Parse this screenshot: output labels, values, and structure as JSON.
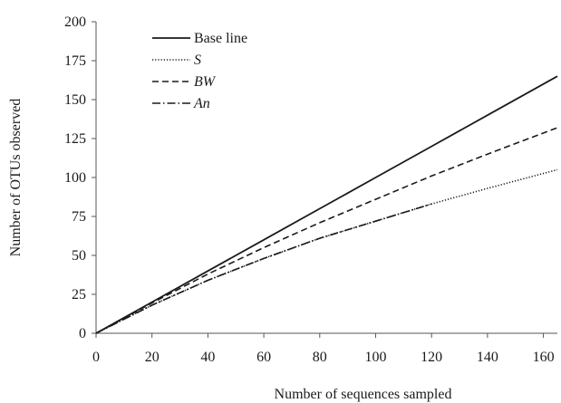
{
  "chart_data": {
    "type": "line",
    "title": "",
    "xlabel": "Number of sequences sampled",
    "ylabel": "Number of OTUs observed",
    "xlim": [
      0,
      165
    ],
    "ylim": [
      0,
      200
    ],
    "x_ticks": [
      0,
      20,
      40,
      60,
      80,
      100,
      120,
      140,
      160
    ],
    "y_ticks": [
      0,
      25,
      50,
      75,
      100,
      125,
      150,
      175,
      200
    ],
    "grid": false,
    "legend_position": "top-left",
    "series": [
      {
        "name": "Base line",
        "style": "solid",
        "italic": false,
        "color": "#1a1a1a",
        "x": [
          0,
          20,
          40,
          60,
          80,
          100,
          120,
          140,
          165
        ],
        "y": [
          0,
          20,
          40,
          60,
          80,
          100,
          120,
          140,
          165
        ]
      },
      {
        "name": "S",
        "style": "dotted",
        "italic": true,
        "color": "#1a1a1a",
        "x": [
          0,
          20,
          40,
          60,
          80,
          100,
          120,
          140,
          165
        ],
        "y": [
          0,
          18,
          34,
          48,
          61,
          72,
          83,
          93,
          105
        ]
      },
      {
        "name": "BW",
        "style": "dashed",
        "italic": true,
        "color": "#1a1a1a",
        "x": [
          0,
          20,
          40,
          60,
          80,
          100,
          120,
          140,
          165
        ],
        "y": [
          0,
          19.5,
          38,
          55,
          71,
          86,
          101,
          115,
          132
        ]
      },
      {
        "name": "An",
        "style": "dashdot",
        "italic": true,
        "color": "#1a1a1a",
        "x": [
          0,
          20,
          40,
          60,
          80,
          100,
          120
        ],
        "y": [
          0,
          18,
          34,
          48,
          61,
          72,
          83
        ]
      }
    ]
  }
}
